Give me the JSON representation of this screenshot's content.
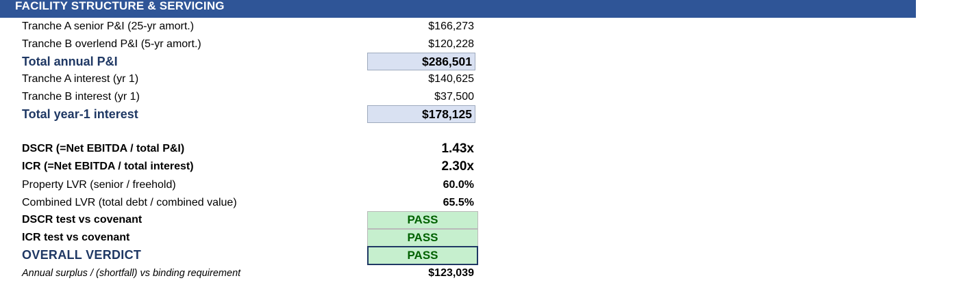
{
  "section": {
    "title": "FACILITY STRUCTURE & SERVICING"
  },
  "rows": {
    "tranche_a_pi": {
      "label": "Tranche A senior P&I  (25-yr amort.)",
      "value": "$166,273"
    },
    "tranche_b_pi": {
      "label": "Tranche B overlend P&I  (5-yr amort.)",
      "value": "$120,228"
    },
    "total_annual_pi": {
      "label": "Total annual P&I",
      "value": "$286,501"
    },
    "tranche_a_interest": {
      "label": "Tranche A interest (yr 1)",
      "value": "$140,625"
    },
    "tranche_b_interest": {
      "label": "Tranche B interest (yr 1)",
      "value": "$37,500"
    },
    "total_year1_interest": {
      "label": "Total year-1 interest",
      "value": "$178,125"
    },
    "dscr": {
      "label": "DSCR  (=Net EBITDA / total P&I)",
      "value": "1.43x"
    },
    "icr": {
      "label": "ICR  (=Net EBITDA / total interest)",
      "value": "2.30x"
    },
    "property_lvr": {
      "label": "Property LVR (senior / freehold)",
      "value": "60.0%"
    },
    "combined_lvr": {
      "label": "Combined LVR (total debt / combined value)",
      "value": "65.5%"
    },
    "dscr_test": {
      "label": "DSCR test  vs covenant",
      "value": "PASS"
    },
    "icr_test": {
      "label": "ICR test  vs covenant",
      "value": "PASS"
    },
    "overall_verdict": {
      "label": "OVERALL VERDICT",
      "value": "PASS"
    },
    "annual_surplus": {
      "label": "Annual surplus / (shortfall) vs binding requirement",
      "value": "$123,039"
    }
  },
  "colors": {
    "header_bg": "#2f5597",
    "total_label": "#1f3864",
    "total_cell_bg": "#d9e1f2",
    "pass_bg": "#c6efce",
    "pass_text": "#006100"
  }
}
